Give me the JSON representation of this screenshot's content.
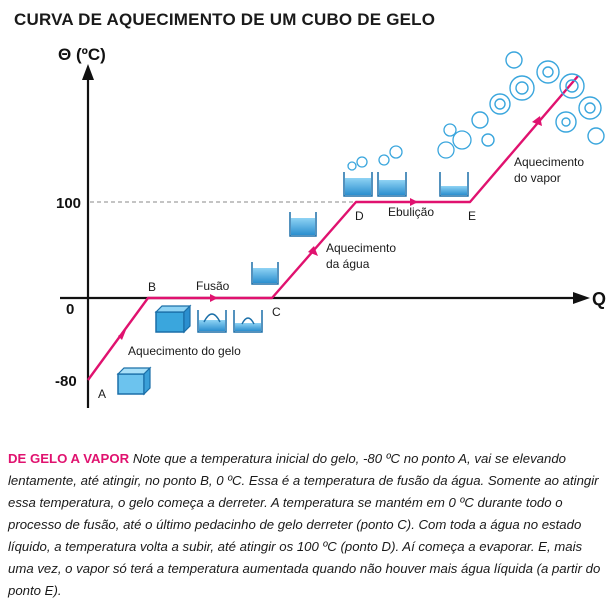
{
  "title": "CURVA DE AQUECIMENTO DE UM CUBO DE GELO",
  "axes": {
    "y_label": "Θ (ºC)",
    "x_label": "Q",
    "ticks": [
      "100",
      "0",
      "-80"
    ]
  },
  "points": {
    "a": "A",
    "b": "B",
    "c": "C",
    "d": "D",
    "e": "E"
  },
  "segments": {
    "ice_heating": "Aquecimento do gelo",
    "fusion": "Fusão",
    "water_heating_1": "Aquecimento",
    "water_heating_2": "da água",
    "boiling": "Ebulição",
    "vapor_heating_1": "Aquecimento",
    "vapor_heating_2": "do vapor"
  },
  "colors": {
    "curve": "#e0126f",
    "ice": "#3aa6dd",
    "steam": "#3aa6dd",
    "axis": "#111111"
  },
  "caption": {
    "heading": "DE GELO A VAPOR",
    "text": "Note que a temperatura inicial do gelo, -80 ºC no ponto A, vai se elevando lentamente, até atingir, no ponto B, 0 ºC. Essa é a temperatura de fusão da água. Somente ao atingir essa temperatura, o gelo começa a derreter. A temperatura se mantém em 0 ºC durante todo o processo de fusão, até o último pedacinho de gelo derreter (ponto C). Com toda a água no estado líquido, a temperatura volta a subir, até atingir os 100 ºC (ponto D). Aí começa a evaporar. E, mais uma vez, o vapor só terá a temperatura aumentada quando não houver mais água líquida (a partir do ponto E)."
  }
}
